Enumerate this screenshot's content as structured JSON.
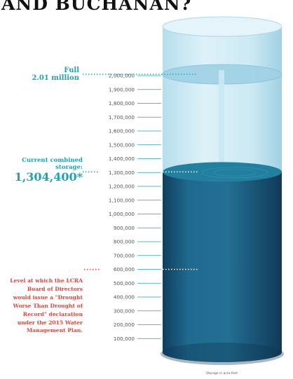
{
  "headline": "AND BUCHANAN?",
  "chart_data": {
    "type": "bar",
    "ylim": [
      0,
      2100000
    ],
    "yticks": [
      {
        "value": 100000,
        "label": "100,000"
      },
      {
        "value": 200000,
        "label": "200,000"
      },
      {
        "value": 300000,
        "label": "300,000"
      },
      {
        "value": 400000,
        "label": "400,000"
      },
      {
        "value": 500000,
        "label": "500,000"
      },
      {
        "value": 600000,
        "label": "600,000"
      },
      {
        "value": 700000,
        "label": "700,000"
      },
      {
        "value": 800000,
        "label": "800,000"
      },
      {
        "value": 900000,
        "label": "900,000"
      },
      {
        "value": 1000000,
        "label": "1,000,000"
      },
      {
        "value": 1100000,
        "label": "1,100,000"
      },
      {
        "value": 1200000,
        "label": "1,200,000"
      },
      {
        "value": 1300000,
        "label": "1,300,000"
      },
      {
        "value": 1400000,
        "label": "1,400,000"
      },
      {
        "value": 1500000,
        "label": "1,500,000"
      },
      {
        "value": 1600000,
        "label": "1,600,000"
      },
      {
        "value": 1700000,
        "label": "1,700,000"
      },
      {
        "value": 1800000,
        "label": "1,800,000"
      },
      {
        "value": 1900000,
        "label": "1,900,000"
      },
      {
        "value": 2000000,
        "label": "2,000,000"
      }
    ],
    "full": {
      "value": 2010000,
      "label_line1": "Full",
      "label_line2": "2.01 million"
    },
    "current": {
      "value": 1304400,
      "title": "Current combined storage:",
      "label": "1,304,400*"
    },
    "drought": {
      "value": 600000,
      "label": "Level at which the LCRA Board of Directors would issue a \"Drought Worse Than Drought of Record\" declaration under the 2015 Water Management Plan."
    },
    "footnote": "Storage in acre-feet",
    "colors": {
      "accent": "#1ea3b5",
      "drought": "#e2443a",
      "water": "#1d5f82",
      "water_surface": "#237f9e",
      "empty_tank": "#bfe3f0"
    }
  }
}
